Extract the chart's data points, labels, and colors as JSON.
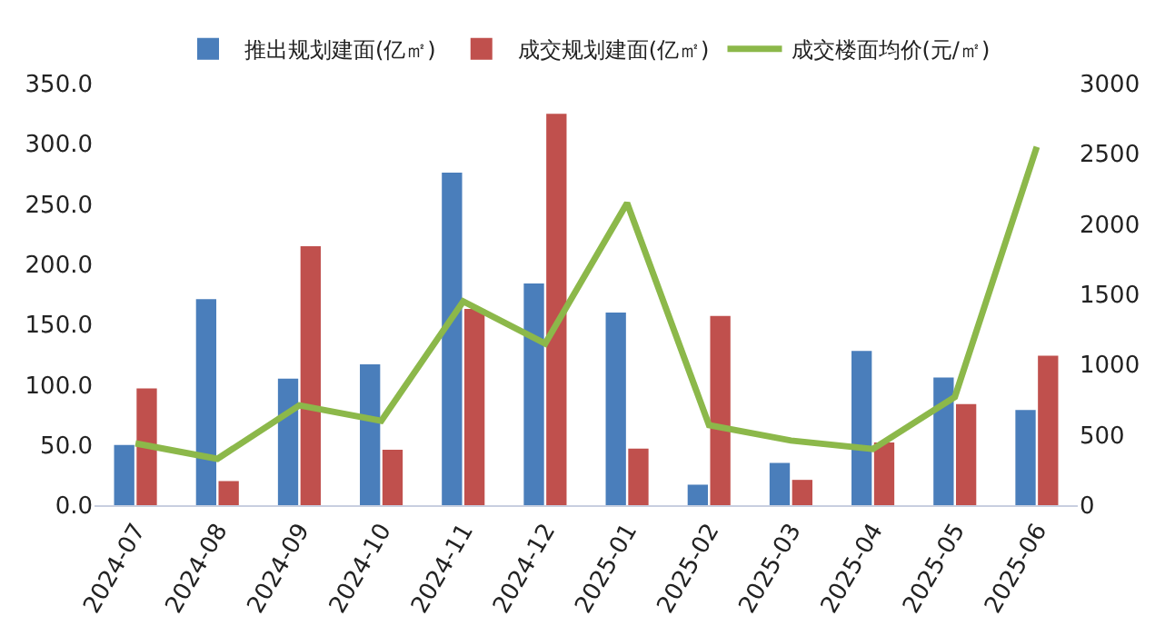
{
  "chart_data": {
    "type": "bar",
    "categories": [
      "2024-07",
      "2024-08",
      "2024-09",
      "2024-10",
      "2024-11",
      "2024-12",
      "2025-01",
      "2025-02",
      "2025-03",
      "2025-04",
      "2025-05",
      "2025-06"
    ],
    "series": [
      {
        "name": "推出规划建面(亿㎡)",
        "color": "#4a7ebb",
        "values": [
          50,
          171,
          105,
          117,
          276,
          184,
          160,
          17,
          35,
          128,
          106,
          79
        ]
      },
      {
        "name": "成交规划建面(亿㎡)",
        "color": "#c0504d",
        "values": [
          97,
          20,
          215,
          46,
          163,
          325,
          47,
          157,
          21,
          52,
          84,
          124
        ]
      },
      {
        "name": "成交楼面均价(元/㎡)",
        "type": "line",
        "axis": "y2",
        "color": "#8cb84a",
        "values": [
          440,
          330,
          710,
          600,
          1450,
          1150,
          2150,
          570,
          460,
          400,
          770,
          2550
        ]
      }
    ],
    "ylim": [
      0,
      350
    ],
    "yticks": [
      {
        "value": 0,
        "label": "0.0"
      },
      {
        "value": 50,
        "label": "50.0"
      },
      {
        "value": 100,
        "label": "100.0"
      },
      {
        "value": 150,
        "label": "150.0"
      },
      {
        "value": 200,
        "label": "200.0"
      },
      {
        "value": 250,
        "label": "250.0"
      },
      {
        "value": 300,
        "label": "300.0"
      },
      {
        "value": 350,
        "label": "350.0"
      }
    ],
    "y2lim": [
      0,
      3000
    ],
    "y2ticks": [
      0,
      500,
      1000,
      1500,
      2000,
      2500,
      3000
    ],
    "grid": false,
    "legend": "top",
    "marker": "none",
    "line_style": "solid"
  }
}
